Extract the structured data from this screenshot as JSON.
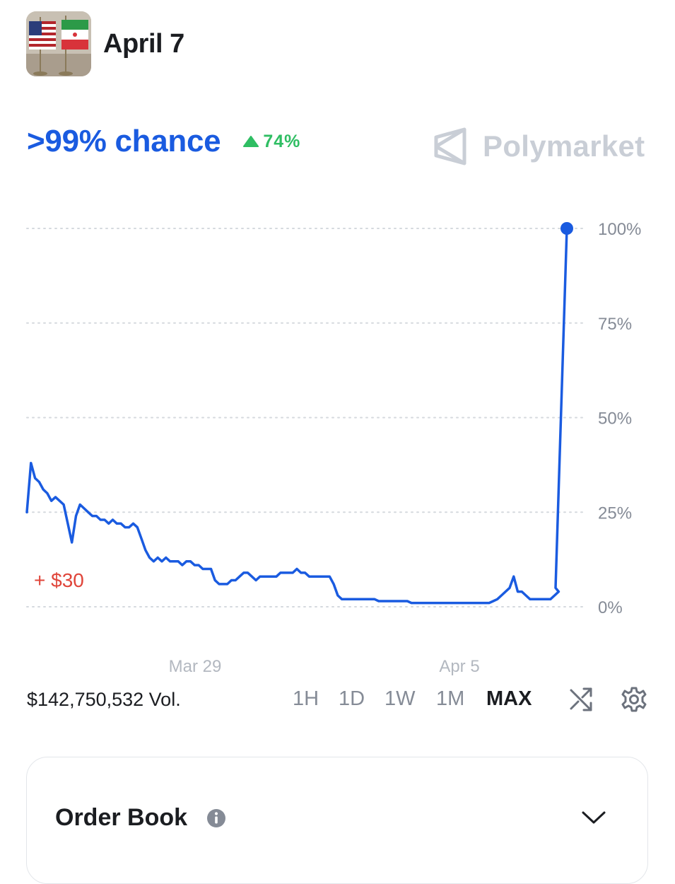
{
  "header": {
    "title": "April 7",
    "thumbnail_icon": "us-iran-flags-icon"
  },
  "headline": {
    "chance": ">99% chance",
    "delta": "74%",
    "delta_icon": "triangle-up-icon",
    "delta_color": "#2fbe63",
    "accent": "#1a5be0"
  },
  "brand": {
    "name": "Polymarket",
    "logo_icon": "polymarket-logo-icon"
  },
  "chart_data": {
    "type": "line",
    "y_ticks": [
      "100%",
      "75%",
      "50%",
      "25%",
      "0%"
    ],
    "x_ticks": [
      "Mar 29",
      "Apr 5"
    ],
    "annotation": "+ $30",
    "annotation_color": "#e0453a",
    "ylim": [
      0,
      100
    ],
    "grid": "horizontal-dotted",
    "series": [
      {
        "color": "#1a5be0",
        "values": [
          25,
          38,
          34,
          33,
          31,
          30,
          28,
          29,
          28,
          27,
          22,
          17,
          24,
          27,
          26,
          25,
          24,
          24,
          23,
          23,
          22,
          23,
          22,
          22,
          21,
          21,
          22,
          21,
          18,
          15,
          13,
          12,
          13,
          12,
          13,
          12,
          12,
          12,
          11,
          12,
          12,
          11,
          11,
          10,
          10,
          10,
          7,
          6,
          6,
          6,
          7,
          7,
          8,
          9,
          9,
          8,
          7,
          8,
          8,
          8,
          8,
          8,
          9,
          9,
          9,
          9,
          10,
          9,
          9,
          8,
          8,
          8,
          8,
          8,
          8,
          6,
          3,
          2,
          2,
          2,
          2,
          2,
          2,
          2,
          2,
          2,
          1.5,
          1.5,
          1.5,
          1.5,
          1.5,
          1.5,
          1.5,
          1.5,
          1,
          1,
          1,
          1,
          1,
          1,
          1,
          1,
          1,
          1,
          1,
          1,
          1,
          1,
          1,
          1,
          1,
          1,
          1,
          1,
          1.5,
          2,
          3,
          4,
          5,
          8,
          4,
          4,
          3,
          2,
          2,
          2,
          2,
          2,
          2,
          3,
          4,
          5,
          100
        ]
      }
    ]
  },
  "controls": {
    "volume": "$142,750,532 Vol.",
    "ranges": [
      "1H",
      "1D",
      "1W",
      "1M",
      "MAX"
    ],
    "active_range": "MAX",
    "shuffle_icon": "shuffle-icon",
    "settings_icon": "gear-icon"
  },
  "order_book": {
    "title": "Order Book",
    "info_icon": "info-icon",
    "chevron_icon": "chevron-down-icon"
  }
}
